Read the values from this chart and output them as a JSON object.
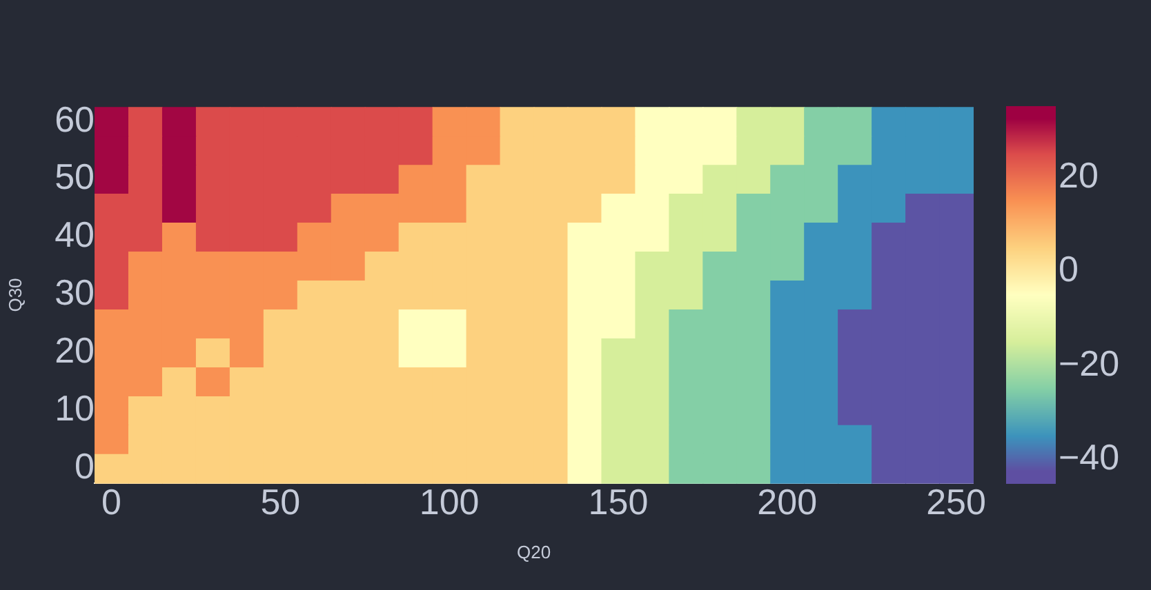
{
  "chart_data": {
    "type": "heatmap",
    "xlabel": "Q20",
    "ylabel": "Q30",
    "categories": [
      "0",
      null,
      null,
      null,
      null,
      "50",
      null,
      null,
      null,
      null,
      "100",
      null,
      null,
      null,
      null,
      "150",
      null,
      null,
      null,
      null,
      "200",
      null,
      null,
      null,
      null,
      "250"
    ],
    "y_categories": [
      "60",
      null,
      "50",
      null,
      "40",
      null,
      "30",
      null,
      "20",
      null,
      "10",
      null,
      "0"
    ],
    "clim": [
      -45,
      35
    ],
    "cticks": [
      {
        "value": -40,
        "label": "−40"
      },
      {
        "value": -20,
        "label": "−20"
      },
      0,
      20
    ],
    "cells": [
      [
        32,
        25,
        32,
        25,
        25,
        25,
        25,
        25,
        25,
        25,
        15,
        15,
        5,
        5,
        5,
        5,
        -5,
        -5,
        -5,
        -15,
        -15,
        -25,
        -25,
        -35,
        -35,
        -35
      ],
      [
        32,
        25,
        32,
        25,
        25,
        25,
        25,
        25,
        25,
        25,
        15,
        15,
        5,
        5,
        5,
        5,
        -5,
        -5,
        -5,
        -15,
        -15,
        -25,
        -25,
        -35,
        -35,
        -35
      ],
      [
        32,
        25,
        32,
        25,
        25,
        25,
        25,
        25,
        25,
        15,
        15,
        5,
        5,
        5,
        5,
        5,
        -5,
        -5,
        -15,
        -15,
        -25,
        -25,
        -35,
        -35,
        -35,
        -35
      ],
      [
        25,
        25,
        32,
        25,
        25,
        25,
        25,
        15,
        15,
        15,
        15,
        5,
        5,
        5,
        5,
        -5,
        -5,
        -15,
        -15,
        -25,
        -25,
        -25,
        -35,
        -35,
        -42,
        -42
      ],
      [
        25,
        25,
        15,
        25,
        25,
        25,
        15,
        15,
        15,
        5,
        5,
        5,
        5,
        5,
        -5,
        -5,
        -5,
        -15,
        -15,
        -25,
        -25,
        -35,
        -35,
        -42,
        -42,
        -42
      ],
      [
        25,
        15,
        15,
        15,
        15,
        15,
        15,
        15,
        5,
        5,
        5,
        5,
        5,
        5,
        -5,
        -5,
        -15,
        -15,
        -25,
        -25,
        -25,
        -35,
        -35,
        -42,
        -42,
        -42
      ],
      [
        25,
        15,
        15,
        15,
        15,
        15,
        5,
        5,
        5,
        5,
        5,
        5,
        5,
        5,
        -5,
        -5,
        -15,
        -15,
        -25,
        -25,
        -35,
        -35,
        -35,
        -42,
        -42,
        -42
      ],
      [
        15,
        15,
        15,
        15,
        15,
        5,
        5,
        5,
        5,
        -5,
        -5,
        5,
        5,
        5,
        -5,
        -5,
        -15,
        -25,
        -25,
        -25,
        -35,
        -35,
        -42,
        -42,
        -42,
        -42
      ],
      [
        15,
        15,
        15,
        5,
        15,
        5,
        5,
        5,
        5,
        -5,
        -5,
        5,
        5,
        5,
        -5,
        -15,
        -15,
        -25,
        -25,
        -25,
        -35,
        -35,
        -42,
        -42,
        -42,
        -42
      ],
      [
        15,
        15,
        5,
        15,
        5,
        5,
        5,
        5,
        5,
        5,
        5,
        5,
        5,
        5,
        -5,
        -15,
        -15,
        -25,
        -25,
        -25,
        -35,
        -35,
        -42,
        -42,
        -42,
        -42
      ],
      [
        15,
        5,
        5,
        5,
        5,
        5,
        5,
        5,
        5,
        5,
        5,
        5,
        5,
        5,
        -5,
        -15,
        -15,
        -25,
        -25,
        -25,
        -35,
        -35,
        -42,
        -42,
        -42,
        -42
      ],
      [
        15,
        5,
        5,
        5,
        5,
        5,
        5,
        5,
        5,
        5,
        5,
        5,
        5,
        5,
        -5,
        -15,
        -15,
        -25,
        -25,
        -25,
        -35,
        -35,
        -35,
        -42,
        -42,
        -42
      ],
      [
        5,
        5,
        5,
        5,
        5,
        5,
        5,
        5,
        5,
        5,
        5,
        5,
        5,
        5,
        -5,
        -15,
        -15,
        -25,
        -25,
        -25,
        -35,
        -35,
        -35,
        -42,
        -42,
        -42
      ]
    ]
  }
}
